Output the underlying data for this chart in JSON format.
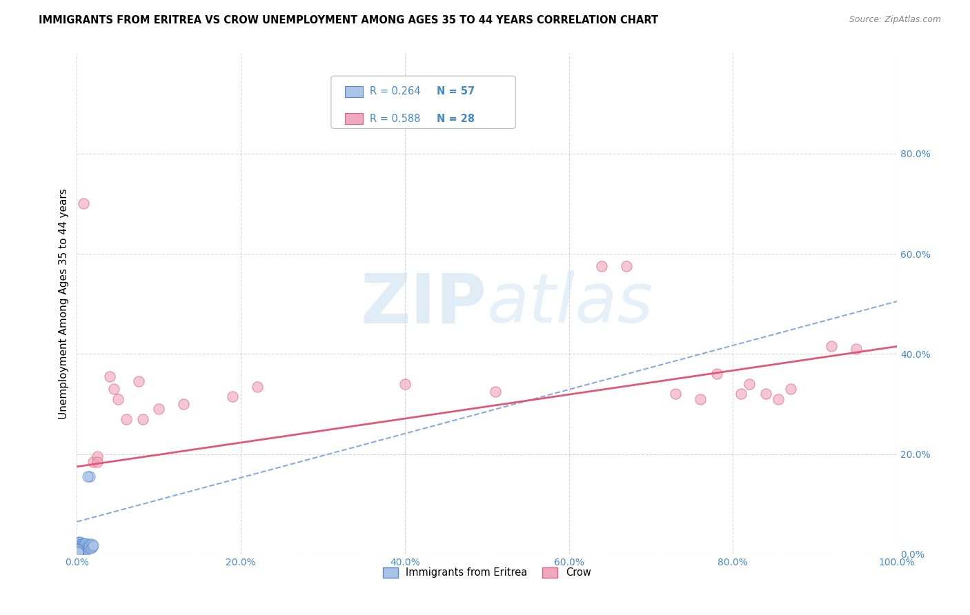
{
  "title": "IMMIGRANTS FROM ERITREA VS CROW UNEMPLOYMENT AMONG AGES 35 TO 44 YEARS CORRELATION CHART",
  "source": "Source: ZipAtlas.com",
  "ylabel": "Unemployment Among Ages 35 to 44 years",
  "xlim": [
    0.0,
    1.0
  ],
  "ylim": [
    0.0,
    1.0
  ],
  "xticks": [
    0.0,
    0.2,
    0.4,
    0.6,
    0.8,
    1.0
  ],
  "xticklabels": [
    "0.0%",
    "20.0%",
    "40.0%",
    "60.0%",
    "80.0%",
    "100.0%"
  ],
  "yticks": [
    0.0,
    0.2,
    0.4,
    0.6,
    0.8
  ],
  "yticklabels": [
    "0.0%",
    "20.0%",
    "40.0%",
    "60.0%",
    "80.0%"
  ],
  "legend_labels": [
    "Immigrants from Eritrea",
    "Crow"
  ],
  "legend_r": [
    "R = 0.264",
    "R = 0.588"
  ],
  "legend_n": [
    "N = 57",
    "N = 28"
  ],
  "scatter_blue_x": [
    0.002,
    0.002,
    0.002,
    0.003,
    0.003,
    0.003,
    0.003,
    0.003,
    0.004,
    0.004,
    0.004,
    0.005,
    0.005,
    0.005,
    0.005,
    0.006,
    0.006,
    0.006,
    0.007,
    0.007,
    0.007,
    0.008,
    0.008,
    0.009,
    0.009,
    0.01,
    0.01,
    0.011,
    0.011,
    0.012,
    0.012,
    0.013,
    0.014,
    0.015,
    0.015,
    0.016,
    0.017,
    0.018,
    0.019,
    0.02,
    0.001,
    0.001,
    0.001,
    0.001,
    0.001,
    0.001,
    0.001,
    0.001,
    0.001,
    0.001,
    0.001,
    0.001,
    0.001,
    0.001,
    0.001,
    0.016,
    0.013
  ],
  "scatter_blue_y": [
    0.02,
    0.015,
    0.025,
    0.01,
    0.018,
    0.022,
    0.015,
    0.012,
    0.018,
    0.02,
    0.025,
    0.01,
    0.015,
    0.02,
    0.012,
    0.015,
    0.02,
    0.018,
    0.012,
    0.018,
    0.022,
    0.015,
    0.02,
    0.01,
    0.018,
    0.012,
    0.02,
    0.015,
    0.022,
    0.01,
    0.018,
    0.015,
    0.012,
    0.02,
    0.015,
    0.018,
    0.012,
    0.02,
    0.015,
    0.018,
    0.005,
    0.008,
    0.01,
    0.006,
    0.007,
    0.009,
    0.004,
    0.006,
    0.008,
    0.005,
    0.007,
    0.009,
    0.003,
    0.006,
    0.004,
    0.155,
    0.155
  ],
  "scatter_pink_x": [
    0.008,
    0.02,
    0.025,
    0.025,
    0.04,
    0.045,
    0.05,
    0.06,
    0.075,
    0.08,
    0.1,
    0.13,
    0.19,
    0.22,
    0.4,
    0.51,
    0.64,
    0.67,
    0.73,
    0.76,
    0.78,
    0.81,
    0.82,
    0.84,
    0.855,
    0.87,
    0.92,
    0.95
  ],
  "scatter_pink_y": [
    0.7,
    0.185,
    0.195,
    0.185,
    0.355,
    0.33,
    0.31,
    0.27,
    0.345,
    0.27,
    0.29,
    0.3,
    0.315,
    0.335,
    0.34,
    0.325,
    0.575,
    0.575,
    0.32,
    0.31,
    0.36,
    0.32,
    0.34,
    0.32,
    0.31,
    0.33,
    0.415,
    0.41
  ],
  "blue_line_x": [
    0.0,
    1.0
  ],
  "blue_line_y": [
    0.065,
    0.505
  ],
  "pink_line_x": [
    0.0,
    1.0
  ],
  "pink_line_y": [
    0.175,
    0.415
  ],
  "blue_scatter_color": "#aac4e8",
  "blue_scatter_edge": "#5588cc",
  "pink_scatter_color": "#f0a8be",
  "pink_scatter_edge": "#e06080",
  "blue_line_color": "#88aadd",
  "pink_line_color": "#e05878",
  "watermark_zip": "ZIP",
  "watermark_atlas": "atlas",
  "background_color": "#ffffff",
  "grid_color": "#cccccc"
}
